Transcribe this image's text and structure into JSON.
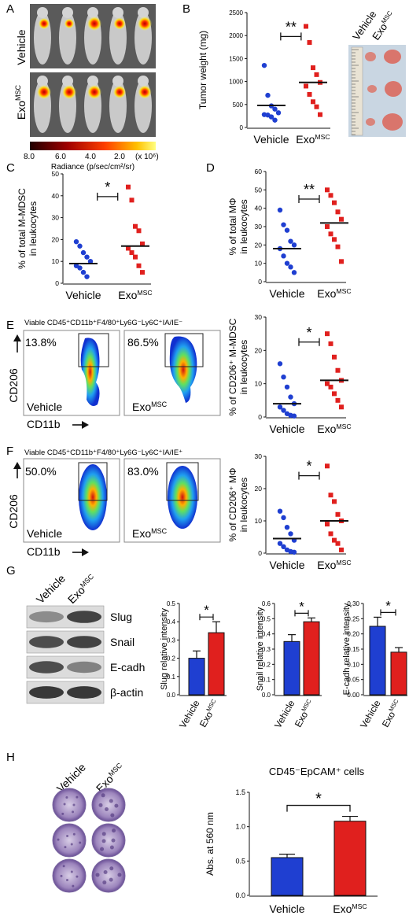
{
  "colors": {
    "vehicle": "#1f3fd1",
    "exo": "#e0201e",
    "black": "#111111"
  },
  "panel_letters": {
    "A": "A",
    "B": "B",
    "C": "C",
    "D": "D",
    "E": "E",
    "F": "F",
    "G": "G",
    "H": "H"
  },
  "panelA": {
    "row_labels": [
      "Vehicle",
      "Exo",
      "MSC"
    ],
    "colorbar_ticks": [
      "8.0",
      "6.0",
      "4.0",
      "2.0",
      "(x 10⁶)"
    ],
    "colorbar_label": "Radiance (p/sec/cm²/sr)"
  },
  "photoB_labels": {
    "vehicle": "Vehicle",
    "exo": "Exo",
    "sup": "MSC"
  },
  "flowE": {
    "gate_title": "Viable CD45⁺CD11b⁺F4/80⁺Ly6G⁻Ly6C⁺IA/IE⁻",
    "pct_vehicle": "13.8%",
    "pct_exo": "86.5%",
    "ylabel": "CD206",
    "xlabel": "CD11b",
    "label_vehicle": "Vehicle",
    "label_exo": "Exo",
    "label_sup": "MSC"
  },
  "flowF": {
    "gate_title": "Viable CD45⁺CD11b⁺F4/80⁺Ly6G⁻Ly6C⁺IA/IE⁺",
    "pct_vehicle": "50.0%",
    "pct_exo": "83.0%",
    "ylabel": "CD206",
    "xlabel": "CD11b",
    "label_vehicle": "Vehicle",
    "label_exo": "Exo",
    "label_sup": "MSC"
  },
  "blotG": {
    "col_vehicle": "Vehicle",
    "col_exo": "Exo",
    "col_sup": "MSC",
    "bands": [
      "Slug",
      "Snail",
      "E-cadh",
      "β-actin"
    ]
  },
  "wellsH": {
    "col_vehicle": "Vehicle",
    "col_exo": "Exo",
    "col_sup": "MSC"
  },
  "chart_data": [
    {
      "id": "B",
      "type": "scatter",
      "ylabel": "Tumor weight (mg)",
      "categories": [
        "Vehicle",
        "Exo"
      ],
      "category_superscripts": [
        "",
        "MSC"
      ],
      "ylim": [
        0,
        2500
      ],
      "yticks": [
        0,
        500,
        1000,
        1500,
        2000,
        2500
      ],
      "significance": "**",
      "series": [
        {
          "name": "Vehicle",
          "values": [
            1350,
            700,
            470,
            400,
            320,
            280,
            270,
            230,
            160
          ],
          "mean": 480
        },
        {
          "name": "Exo",
          "values": [
            2200,
            1850,
            1300,
            1150,
            980,
            900,
            720,
            560,
            450,
            280
          ],
          "mean": 980
        }
      ]
    },
    {
      "id": "C",
      "type": "scatter",
      "ylabel": "% of total M-MDSC\nin leukocytes",
      "categories": [
        "Vehicle",
        "Exo"
      ],
      "category_superscripts": [
        "",
        "MSC"
      ],
      "ylim": [
        0,
        50
      ],
      "yticks": [
        0,
        10,
        20,
        30,
        40,
        50
      ],
      "significance": "*",
      "series": [
        {
          "name": "Vehicle",
          "values": [
            19,
            17,
            14,
            12,
            10,
            8,
            7,
            5,
            3
          ],
          "mean": 9
        },
        {
          "name": "Exo",
          "values": [
            44,
            38,
            26,
            24,
            18,
            16,
            14,
            12,
            8,
            5
          ],
          "mean": 17
        }
      ]
    },
    {
      "id": "D",
      "type": "scatter",
      "ylabel": "% of total MΦ\nin leukocytes",
      "categories": [
        "Vehicle",
        "Exo"
      ],
      "category_superscripts": [
        "",
        "MSC"
      ],
      "ylim": [
        0,
        60
      ],
      "yticks": [
        0,
        10,
        20,
        30,
        40,
        50,
        60
      ],
      "significance": "**",
      "series": [
        {
          "name": "Vehicle",
          "values": [
            39,
            31,
            28,
            22,
            20,
            18,
            14,
            10,
            8,
            5
          ],
          "mean": 18
        },
        {
          "name": "Exo",
          "values": [
            50,
            47,
            43,
            38,
            34,
            30,
            26,
            23,
            19,
            11
          ],
          "mean": 32
        }
      ]
    },
    {
      "id": "E",
      "type": "scatter",
      "ylabel": "% of CD206⁺ M-MDSC\nin leukocytes",
      "categories": [
        "Vehicle",
        "Exo"
      ],
      "category_superscripts": [
        "",
        "MSC"
      ],
      "ylim": [
        0,
        30
      ],
      "yticks": [
        0,
        10,
        20,
        30
      ],
      "significance": "*",
      "series": [
        {
          "name": "Vehicle",
          "values": [
            16,
            12,
            9,
            6,
            4,
            3,
            2,
            1,
            0.5,
            0.3
          ],
          "mean": 4
        },
        {
          "name": "Exo",
          "values": [
            25,
            22,
            18,
            14,
            11,
            10,
            9,
            7,
            5,
            3
          ],
          "mean": 11
        }
      ]
    },
    {
      "id": "F",
      "type": "scatter",
      "ylabel": "% of CD206⁺ MΦ\nin leukocytes",
      "categories": [
        "Vehicle",
        "Exo"
      ],
      "category_superscripts": [
        "",
        "MSC"
      ],
      "ylim": [
        0,
        30
      ],
      "yticks": [
        0,
        10,
        20,
        30
      ],
      "significance": "*",
      "series": [
        {
          "name": "Vehicle",
          "values": [
            13,
            11,
            8,
            6,
            4,
            3,
            2,
            1,
            0.5,
            0.3
          ],
          "mean": 4.5
        },
        {
          "name": "Exo",
          "values": [
            27,
            18,
            16,
            12,
            10,
            9,
            6,
            4,
            3,
            1
          ],
          "mean": 10
        }
      ]
    },
    {
      "id": "G1",
      "type": "bar",
      "ylabel": "Slug relative intensity",
      "categories": [
        "Vehicle",
        "Exo"
      ],
      "category_superscripts": [
        "",
        "MSC"
      ],
      "ylim": [
        0,
        0.5
      ],
      "yticks": [
        0.0,
        0.1,
        0.2,
        0.3,
        0.4,
        0.5
      ],
      "significance": "*",
      "values": [
        0.2,
        0.34
      ],
      "errors": [
        0.04,
        0.06
      ]
    },
    {
      "id": "G2",
      "type": "bar",
      "ylabel": "Snail relative intensity",
      "categories": [
        "Vehicle",
        "Exo"
      ],
      "category_superscripts": [
        "",
        "MSC"
      ],
      "ylim": [
        0,
        0.6
      ],
      "yticks": [
        0.0,
        0.1,
        0.2,
        0.3,
        0.4,
        0.5,
        0.6
      ],
      "significance": "*",
      "values": [
        0.35,
        0.48
      ],
      "errors": [
        0.045,
        0.025
      ]
    },
    {
      "id": "G3",
      "type": "bar",
      "ylabel": "E-cadh relative intensity",
      "categories": [
        "Vehicle",
        "Exo"
      ],
      "category_superscripts": [
        "",
        "MSC"
      ],
      "ylim": [
        0,
        0.3
      ],
      "yticks": [
        0.0,
        0.05,
        0.1,
        0.15,
        0.2,
        0.25,
        0.3
      ],
      "significance": "*",
      "values": [
        0.225,
        0.14
      ],
      "errors": [
        0.03,
        0.015
      ]
    },
    {
      "id": "H",
      "type": "bar",
      "title": "CD45⁻EpCAM⁺ cells",
      "ylabel": "Abs. at 560 nm",
      "categories": [
        "Vehicle",
        "Exo"
      ],
      "category_superscripts": [
        "",
        "MSC"
      ],
      "ylim": [
        0,
        1.5
      ],
      "yticks": [
        0.0,
        0.5,
        1.0,
        1.5
      ],
      "significance": "*",
      "values": [
        0.55,
        1.08
      ],
      "errors": [
        0.05,
        0.07
      ]
    }
  ]
}
